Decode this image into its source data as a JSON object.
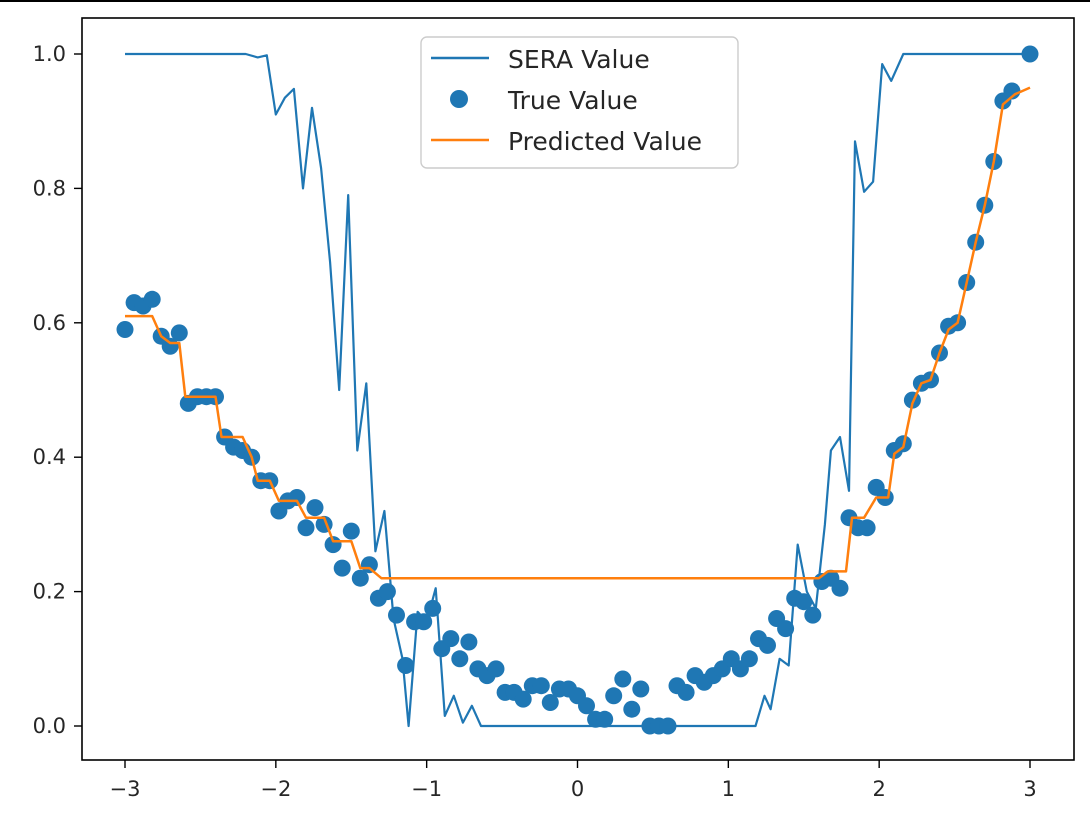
{
  "chart_data": {
    "type": "line",
    "title": "",
    "xlabel": "",
    "ylabel": "",
    "xlim": [
      -3.3,
      3.3
    ],
    "ylim": [
      -0.05,
      1.03
    ],
    "xticks": [
      -3,
      -2,
      -1,
      0,
      1,
      2,
      3
    ],
    "xtick_labels": [
      "−3",
      "−2",
      "−1",
      "0",
      "1",
      "2",
      "3"
    ],
    "yticks": [
      0.0,
      0.2,
      0.4,
      0.6,
      0.8,
      1.0
    ],
    "ytick_labels": [
      "0.0",
      "0.2",
      "0.4",
      "0.6",
      "0.8",
      "1.0"
    ],
    "grid": false,
    "legend_position": "upper center",
    "colors": {
      "sera": "#1f77b4",
      "true": "#1f77b4",
      "pred": "#ff7f0e"
    },
    "series": [
      {
        "name": "SERA Value",
        "kind": "line",
        "points": [
          [
            -3.0,
            1.0
          ],
          [
            -2.6,
            1.0
          ],
          [
            -2.2,
            1.0
          ],
          [
            -2.12,
            0.995
          ],
          [
            -2.06,
            0.998
          ],
          [
            -2.0,
            0.91
          ],
          [
            -1.94,
            0.935
          ],
          [
            -1.88,
            0.948
          ],
          [
            -1.82,
            0.8
          ],
          [
            -1.76,
            0.92
          ],
          [
            -1.7,
            0.83
          ],
          [
            -1.64,
            0.69
          ],
          [
            -1.58,
            0.5
          ],
          [
            -1.52,
            0.79
          ],
          [
            -1.46,
            0.41
          ],
          [
            -1.4,
            0.51
          ],
          [
            -1.34,
            0.26
          ],
          [
            -1.28,
            0.32
          ],
          [
            -1.22,
            0.16
          ],
          [
            -1.16,
            0.1
          ],
          [
            -1.12,
            0.0
          ],
          [
            -1.06,
            0.17
          ],
          [
            -1.0,
            0.155
          ],
          [
            -0.94,
            0.205
          ],
          [
            -0.88,
            0.015
          ],
          [
            -0.82,
            0.045
          ],
          [
            -0.76,
            0.005
          ],
          [
            -0.7,
            0.03
          ],
          [
            -0.64,
            0.0
          ],
          [
            1.18,
            0.0
          ],
          [
            1.24,
            0.045
          ],
          [
            1.28,
            0.025
          ],
          [
            1.34,
            0.1
          ],
          [
            1.4,
            0.09
          ],
          [
            1.46,
            0.27
          ],
          [
            1.52,
            0.2
          ],
          [
            1.58,
            0.175
          ],
          [
            1.64,
            0.3
          ],
          [
            1.68,
            0.41
          ],
          [
            1.74,
            0.43
          ],
          [
            1.8,
            0.35
          ],
          [
            1.84,
            0.87
          ],
          [
            1.9,
            0.795
          ],
          [
            1.96,
            0.81
          ],
          [
            2.02,
            0.985
          ],
          [
            2.08,
            0.96
          ],
          [
            2.16,
            1.0
          ],
          [
            3.0,
            1.0
          ]
        ]
      },
      {
        "name": "True Value",
        "kind": "scatter",
        "points": [
          [
            -3.0,
            0.59
          ],
          [
            -2.94,
            0.63
          ],
          [
            -2.88,
            0.625
          ],
          [
            -2.82,
            0.635
          ],
          [
            -2.76,
            0.58
          ],
          [
            -2.7,
            0.565
          ],
          [
            -2.64,
            0.585
          ],
          [
            -2.58,
            0.48
          ],
          [
            -2.52,
            0.49
          ],
          [
            -2.46,
            0.49
          ],
          [
            -2.4,
            0.49
          ],
          [
            -2.34,
            0.43
          ],
          [
            -2.28,
            0.415
          ],
          [
            -2.22,
            0.41
          ],
          [
            -2.16,
            0.4
          ],
          [
            -2.1,
            0.365
          ],
          [
            -2.04,
            0.365
          ],
          [
            -1.98,
            0.32
          ],
          [
            -1.92,
            0.335
          ],
          [
            -1.86,
            0.34
          ],
          [
            -1.8,
            0.295
          ],
          [
            -1.74,
            0.325
          ],
          [
            -1.68,
            0.3
          ],
          [
            -1.62,
            0.27
          ],
          [
            -1.56,
            0.235
          ],
          [
            -1.5,
            0.29
          ],
          [
            -1.44,
            0.22
          ],
          [
            -1.38,
            0.24
          ],
          [
            -1.32,
            0.19
          ],
          [
            -1.26,
            0.2
          ],
          [
            -1.2,
            0.165
          ],
          [
            -1.14,
            0.09
          ],
          [
            -1.08,
            0.155
          ],
          [
            -1.02,
            0.155
          ],
          [
            -0.96,
            0.175
          ],
          [
            -0.9,
            0.115
          ],
          [
            -0.84,
            0.13
          ],
          [
            -0.78,
            0.1
          ],
          [
            -0.72,
            0.125
          ],
          [
            -0.66,
            0.085
          ],
          [
            -0.6,
            0.075
          ],
          [
            -0.54,
            0.085
          ],
          [
            -0.48,
            0.05
          ],
          [
            -0.42,
            0.05
          ],
          [
            -0.36,
            0.04
          ],
          [
            -0.3,
            0.06
          ],
          [
            -0.24,
            0.06
          ],
          [
            -0.18,
            0.035
          ],
          [
            -0.12,
            0.055
          ],
          [
            -0.06,
            0.055
          ],
          [
            0.0,
            0.045
          ],
          [
            0.06,
            0.03
          ],
          [
            0.12,
            0.01
          ],
          [
            0.18,
            0.01
          ],
          [
            0.24,
            0.045
          ],
          [
            0.3,
            0.07
          ],
          [
            0.36,
            0.025
          ],
          [
            0.42,
            0.055
          ],
          [
            0.48,
            0.0
          ],
          [
            0.54,
            0.0
          ],
          [
            0.6,
            0.0
          ],
          [
            0.66,
            0.06
          ],
          [
            0.72,
            0.05
          ],
          [
            0.78,
            0.075
          ],
          [
            0.84,
            0.065
          ],
          [
            0.9,
            0.075
          ],
          [
            0.96,
            0.085
          ],
          [
            1.02,
            0.1
          ],
          [
            1.08,
            0.085
          ],
          [
            1.14,
            0.1
          ],
          [
            1.2,
            0.13
          ],
          [
            1.26,
            0.12
          ],
          [
            1.32,
            0.16
          ],
          [
            1.38,
            0.145
          ],
          [
            1.44,
            0.19
          ],
          [
            1.5,
            0.185
          ],
          [
            1.56,
            0.165
          ],
          [
            1.62,
            0.215
          ],
          [
            1.68,
            0.22
          ],
          [
            1.74,
            0.205
          ],
          [
            1.8,
            0.31
          ],
          [
            1.86,
            0.295
          ],
          [
            1.92,
            0.295
          ],
          [
            1.98,
            0.355
          ],
          [
            2.04,
            0.34
          ],
          [
            2.1,
            0.41
          ],
          [
            2.16,
            0.42
          ],
          [
            2.22,
            0.485
          ],
          [
            2.28,
            0.51
          ],
          [
            2.34,
            0.515
          ],
          [
            2.4,
            0.555
          ],
          [
            2.46,
            0.595
          ],
          [
            2.52,
            0.6
          ],
          [
            2.58,
            0.66
          ],
          [
            2.64,
            0.72
          ],
          [
            2.7,
            0.775
          ],
          [
            2.76,
            0.84
          ],
          [
            2.82,
            0.93
          ],
          [
            2.88,
            0.945
          ],
          [
            3.0,
            1.0
          ]
        ]
      },
      {
        "name": "Predicted Value",
        "kind": "line",
        "points": [
          [
            -3.0,
            0.61
          ],
          [
            -2.82,
            0.61
          ],
          [
            -2.76,
            0.58
          ],
          [
            -2.7,
            0.57
          ],
          [
            -2.64,
            0.57
          ],
          [
            -2.6,
            0.49
          ],
          [
            -2.4,
            0.49
          ],
          [
            -2.36,
            0.43
          ],
          [
            -2.22,
            0.43
          ],
          [
            -2.16,
            0.4
          ],
          [
            -2.12,
            0.365
          ],
          [
            -2.04,
            0.365
          ],
          [
            -1.98,
            0.335
          ],
          [
            -1.86,
            0.335
          ],
          [
            -1.8,
            0.31
          ],
          [
            -1.68,
            0.31
          ],
          [
            -1.62,
            0.275
          ],
          [
            -1.5,
            0.275
          ],
          [
            -1.44,
            0.235
          ],
          [
            -1.38,
            0.235
          ],
          [
            -1.3,
            0.22
          ],
          [
            1.6,
            0.22
          ],
          [
            1.66,
            0.23
          ],
          [
            1.78,
            0.23
          ],
          [
            1.82,
            0.31
          ],
          [
            1.9,
            0.31
          ],
          [
            1.98,
            0.34
          ],
          [
            2.06,
            0.34
          ],
          [
            2.1,
            0.405
          ],
          [
            2.16,
            0.415
          ],
          [
            2.22,
            0.48
          ],
          [
            2.28,
            0.51
          ],
          [
            2.34,
            0.515
          ],
          [
            2.4,
            0.555
          ],
          [
            2.46,
            0.59
          ],
          [
            2.52,
            0.6
          ],
          [
            2.58,
            0.66
          ],
          [
            2.64,
            0.72
          ],
          [
            2.7,
            0.775
          ],
          [
            2.76,
            0.84
          ],
          [
            2.82,
            0.925
          ],
          [
            2.9,
            0.94
          ],
          [
            3.0,
            0.95
          ]
        ]
      }
    ]
  }
}
